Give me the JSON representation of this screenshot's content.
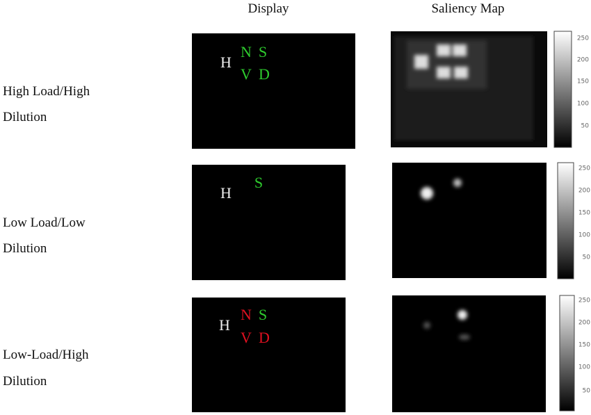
{
  "headers": [
    "Display",
    "Saliency Map"
  ],
  "rows": [
    {
      "label": [
        "High Load/High",
        "Dilution"
      ],
      "letters": [
        "H",
        "N",
        "S",
        "V",
        "D"
      ],
      "colorbar_ticks": [
        250,
        200,
        150,
        100,
        50
      ]
    },
    {
      "label": [
        "Low Load/Low",
        "Dilution"
      ],
      "letters": [
        "H",
        "S"
      ],
      "colorbar_ticks": [
        250,
        200,
        150,
        100,
        50
      ]
    },
    {
      "label": [
        "Low-Load/High",
        "Dilution"
      ],
      "letters": [
        "H",
        "N",
        "S",
        "V",
        "D"
      ],
      "colorbar_ticks": [
        250,
        200,
        150,
        100,
        50
      ]
    }
  ]
}
